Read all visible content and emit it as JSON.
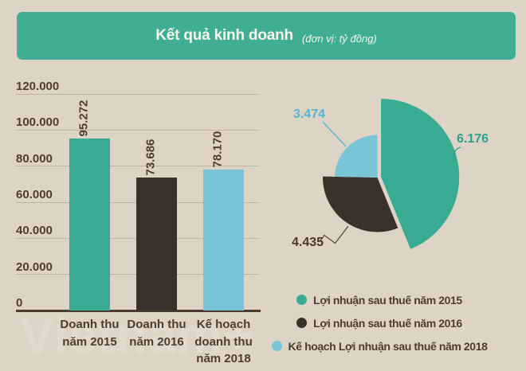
{
  "header": {
    "title": "Kết quả kinh doanh",
    "unit": "(đơn vị: tỷ đồng)"
  },
  "watermark": {
    "text": "Vietnam+"
  },
  "chart_data": [
    {
      "type": "bar",
      "title": "Kết quả kinh doanh (đơn vị: tỷ đồng)",
      "categories": [
        [
          "Doanh thu",
          "năm 2015"
        ],
        [
          "Doanh thu",
          "năm 2016"
        ],
        [
          "Kế hoạch",
          "doanh thu",
          "năm 2018"
        ]
      ],
      "values": [
        95272,
        73686,
        78170
      ],
      "value_labels": [
        "95.272",
        "73.686",
        "78.170"
      ],
      "colors": [
        "#38ab92",
        "#3a322a",
        "#7ac4d7"
      ],
      "ylim": [
        0,
        120000
      ],
      "ytick_values": [
        0,
        20000,
        40000,
        60000,
        80000,
        100000,
        120000
      ],
      "ytick_labels": [
        "0",
        "20.000",
        "40.000",
        "60.000",
        "80.000",
        "100.000",
        "120.000"
      ],
      "grid": true,
      "xlabel": "",
      "ylabel": ""
    },
    {
      "type": "pie",
      "style": "rose-radius-by-value, first slice exploded",
      "values": [
        6176,
        4435,
        3474
      ],
      "value_labels": [
        "6.176",
        "4.435",
        "3.474"
      ],
      "labels": [
        "Lợi nhuận sau thuế năm 2015",
        "Lợi nhuận sau thuế năm 2016",
        "Kế hoạch Lợi nhuận sau thuế năm 2018"
      ],
      "colors": [
        "#38ab92",
        "#3a322a",
        "#7ac4d7"
      ],
      "label_colors": [
        "#2aa38d",
        "#463729",
        "#54b6d4"
      ],
      "legend_position": "bottom"
    }
  ]
}
